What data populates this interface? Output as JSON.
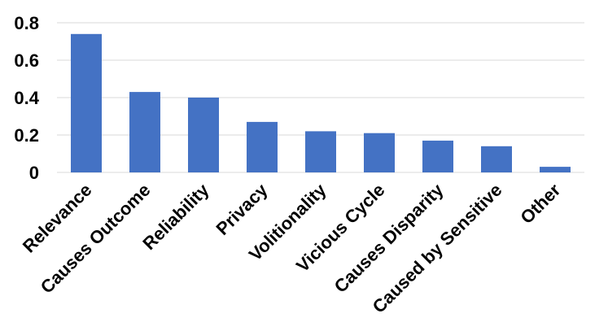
{
  "chart_data": {
    "type": "bar",
    "categories": [
      "Relevance",
      "Causes Outcome",
      "Reliability",
      "Privacy",
      "Volitionality",
      "Vicious Cycle",
      "Causes Disparity",
      "Caused by Sensitive",
      "Other"
    ],
    "values": [
      0.74,
      0.43,
      0.4,
      0.27,
      0.22,
      0.21,
      0.17,
      0.14,
      0.03
    ],
    "ylim": [
      0,
      0.8
    ],
    "yticks": [
      0,
      0.2,
      0.4,
      0.6,
      0.8
    ],
    "ytick_labels": [
      "0",
      "0.2",
      "0.4",
      "0.6",
      "0.8"
    ],
    "title": "",
    "xlabel": "",
    "ylabel": "",
    "grid": true,
    "legend": "none",
    "bar_color": "#4472c4"
  }
}
